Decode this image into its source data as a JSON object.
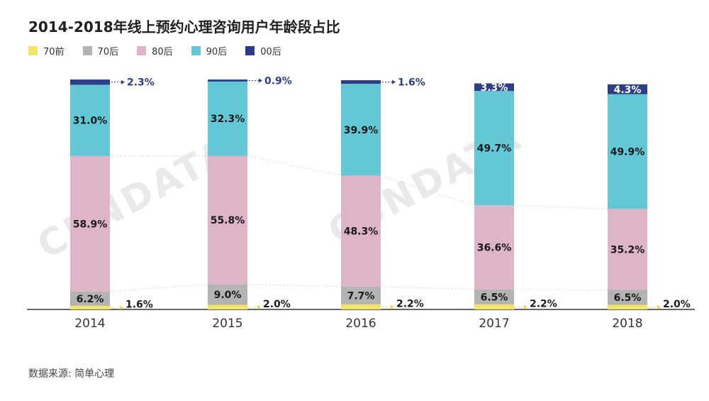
{
  "title": "2014-2018年线上预约心理咨询用户年龄段占比",
  "source_label": "数据来源: 简单心理",
  "watermark_text": "CBNDATA",
  "legend": [
    {
      "name": "70前",
      "color": "#f2e36b"
    },
    {
      "name": "70后",
      "color": "#b3b3b3"
    },
    {
      "name": "80后",
      "color": "#ddb4c8"
    },
    {
      "name": "90后",
      "color": "#63c7d6"
    },
    {
      "name": "00后",
      "color": "#2e3e86"
    }
  ],
  "chart_data": {
    "type": "bar",
    "stacked": true,
    "categories": [
      "2014",
      "2015",
      "2016",
      "2017",
      "2018"
    ],
    "series": [
      {
        "name": "70前",
        "color": "#f2e36b",
        "values": [
          1.6,
          2.0,
          2.2,
          2.2,
          2.0
        ],
        "labels": [
          "1.6%",
          "2.0%",
          "2.2%",
          "2.2%",
          "2.0%"
        ]
      },
      {
        "name": "70后",
        "color": "#b3b3b3",
        "values": [
          6.2,
          9.0,
          7.7,
          6.5,
          6.5
        ],
        "labels": [
          "6.2%",
          "9.0%",
          "7.7%",
          "6.5%",
          "6.5%"
        ]
      },
      {
        "name": "80后",
        "color": "#ddb4c8",
        "values": [
          58.9,
          55.8,
          48.3,
          36.6,
          35.2
        ],
        "labels": [
          "58.9%",
          "55.8%",
          "48.3%",
          "36.6%",
          "35.2%"
        ]
      },
      {
        "name": "90后",
        "color": "#63c7d6",
        "values": [
          31.0,
          32.3,
          39.9,
          49.7,
          49.9
        ],
        "labels": [
          "31.0%",
          "32.3%",
          "39.9%",
          "49.7%",
          "49.9%"
        ]
      },
      {
        "name": "00后",
        "color": "#2e3e86",
        "values": [
          2.3,
          0.9,
          1.6,
          3.3,
          4.3
        ],
        "labels": [
          "2.3%",
          "0.9%",
          "1.6%",
          "3.3%",
          "4.3%"
        ]
      }
    ],
    "ylim": [
      0,
      100
    ],
    "legend_position": "top-left"
  }
}
